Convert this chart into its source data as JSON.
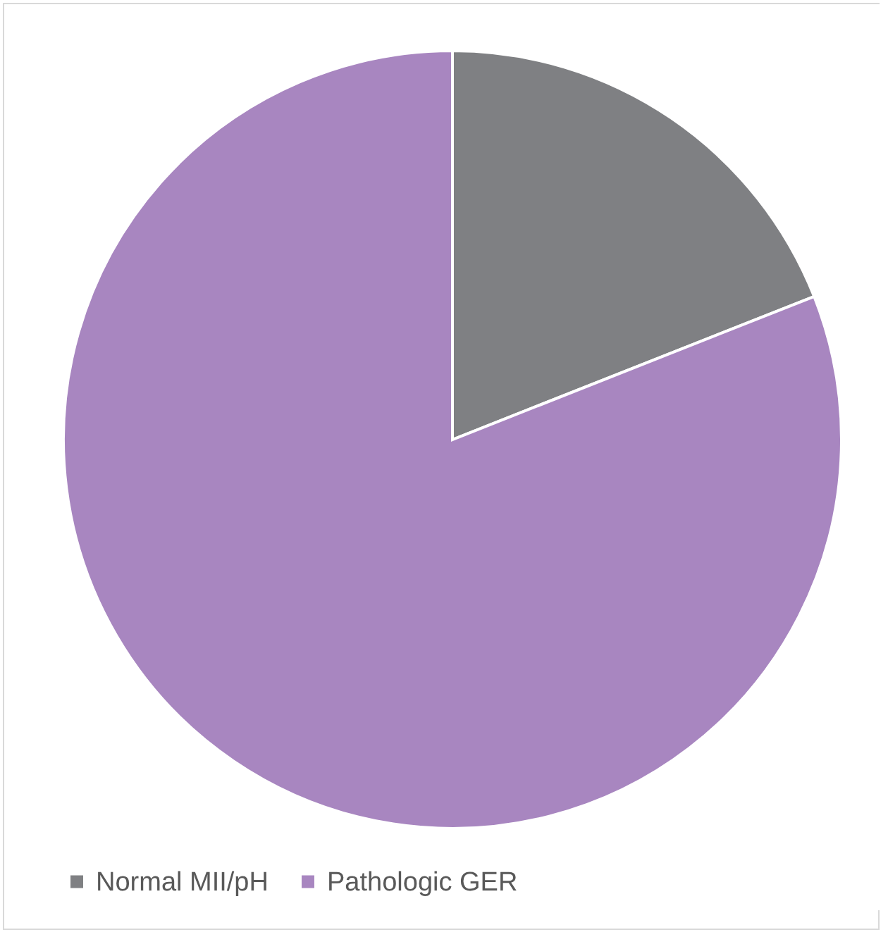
{
  "chart_data": {
    "type": "pie",
    "categories": [
      "Normal MII/pH",
      "Pathologic GER"
    ],
    "values": [
      19,
      81
    ],
    "colors": [
      "#7f8083",
      "#a886c0"
    ],
    "legend": "bottom"
  }
}
